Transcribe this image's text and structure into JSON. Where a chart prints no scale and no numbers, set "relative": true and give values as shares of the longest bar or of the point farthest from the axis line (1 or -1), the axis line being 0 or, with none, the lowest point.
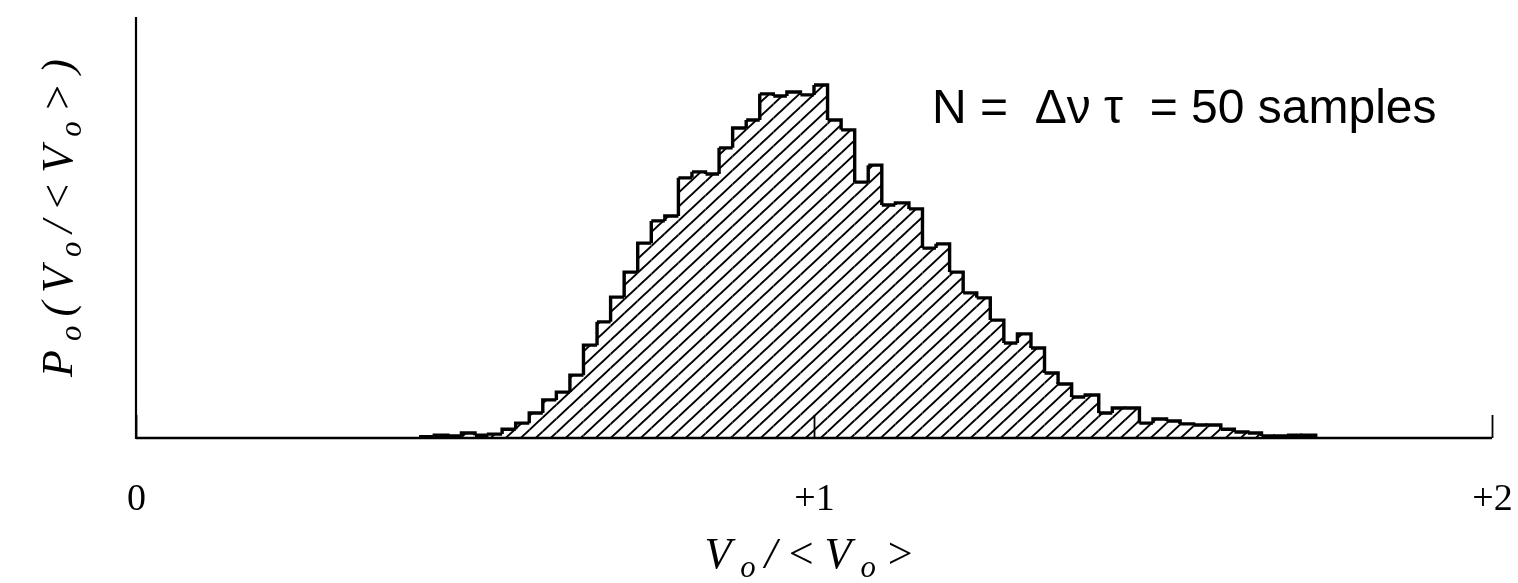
{
  "chart_data": {
    "type": "bar",
    "xlabel": "V$_{o}$/<V$_{o}$>",
    "ylabel": "P$_{o}$(V$_{o}$/<V$_{o}$>)",
    "annotations": [
      "N =  Δν τ  = 50 samples"
    ],
    "relative": true,
    "tick_labels": "x",
    "color": "#000000",
    "xlim": [
      0,
      2
    ],
    "xticks": [
      {
        "value": 0,
        "label": "0"
      },
      {
        "value": 1,
        "label": "+1"
      },
      {
        "value": 2,
        "label": "+2"
      }
    ],
    "x": [
      0.43,
      0.45,
      0.47,
      0.49,
      0.51,
      0.53,
      0.55,
      0.57,
      0.59,
      0.61,
      0.63,
      0.65,
      0.67,
      0.69,
      0.71,
      0.73,
      0.75,
      0.77,
      0.79,
      0.81,
      0.83,
      0.85,
      0.87,
      0.89,
      0.91,
      0.93,
      0.95,
      0.97,
      0.99,
      1.01,
      1.03,
      1.05,
      1.07,
      1.09,
      1.11,
      1.13,
      1.15,
      1.17,
      1.19,
      1.21,
      1.23,
      1.25,
      1.27,
      1.29,
      1.31,
      1.33,
      1.35,
      1.37,
      1.39,
      1.41,
      1.43,
      1.45,
      1.47,
      1.49,
      1.51,
      1.53,
      1.55,
      1.57,
      1.59,
      1.61,
      1.63,
      1.65,
      1.67,
      1.69,
      1.71,
      1.73
    ],
    "values": [
      0.004,
      0.008,
      0.006,
      0.014,
      0.008,
      0.011,
      0.025,
      0.042,
      0.071,
      0.108,
      0.13,
      0.178,
      0.263,
      0.329,
      0.399,
      0.47,
      0.552,
      0.615,
      0.629,
      0.737,
      0.754,
      0.748,
      0.822,
      0.878,
      0.901,
      0.975,
      0.969,
      0.98,
      0.972,
      1,
      0.901,
      0.873,
      0.725,
      0.773,
      0.66,
      0.666,
      0.649,
      0.538,
      0.55,
      0.47,
      0.411,
      0.397,
      0.334,
      0.269,
      0.295,
      0.255,
      0.184,
      0.153,
      0.116,
      0.122,
      0.071,
      0.085,
      0.085,
      0.042,
      0.054,
      0.048,
      0.04,
      0.037,
      0.037,
      0.025,
      0.017,
      0.014,
      0.006,
      0.006,
      0.008,
      0.008
    ]
  }
}
